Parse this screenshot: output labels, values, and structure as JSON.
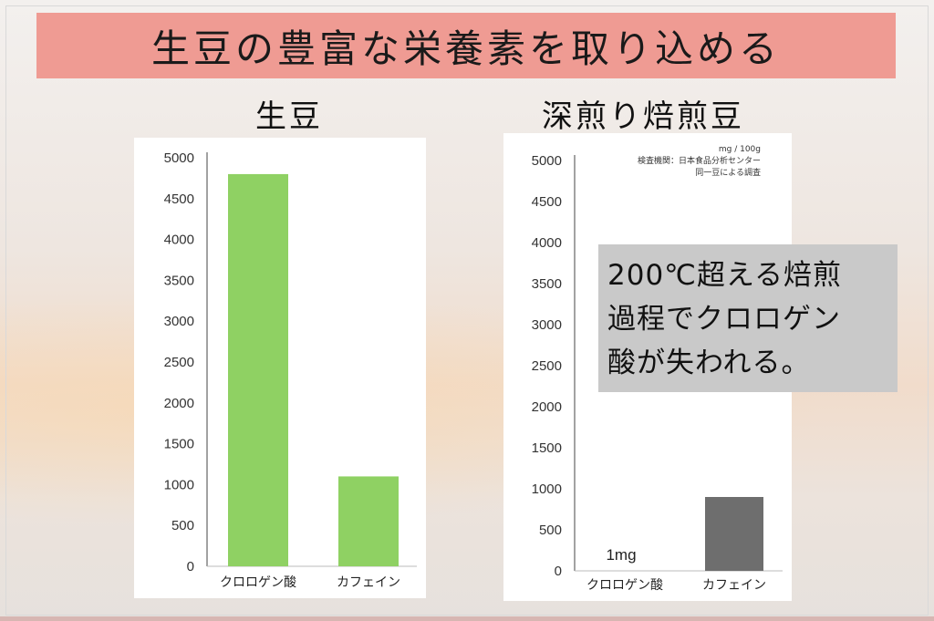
{
  "title": "生豆の豊富な栄養素を取り込める",
  "callout": {
    "lines": [
      "200℃超える焙煎",
      "過程でクロロゲン",
      "酸が失われる。"
    ]
  },
  "colors": {
    "title_bg": "#ef9b93",
    "green_bar": "#8fd163",
    "gray_bar": "#6e6e6e",
    "callout_bg": "#c9c9c9"
  },
  "chart_data": [
    {
      "type": "bar",
      "title": "生豆",
      "categories": [
        "クロロゲン酸",
        "カフェイン"
      ],
      "values": [
        4800,
        1100
      ],
      "ylim": [
        0,
        5000
      ],
      "yticks": [
        "0",
        "500",
        "1000",
        "1500",
        "2000",
        "2500",
        "3000",
        "3500",
        "4000",
        "4500",
        "5000"
      ],
      "grid": false,
      "legend": "none"
    },
    {
      "type": "bar",
      "title": "深煎り焙煎豆",
      "categories": [
        "クロロゲン酸",
        "カフェイン"
      ],
      "values": [
        1,
        900
      ],
      "ylim": [
        0,
        5000
      ],
      "yticks": [
        "0",
        "500",
        "1000",
        "1500",
        "2000",
        "2500",
        "3000",
        "3500",
        "4000",
        "4500",
        "5000"
      ],
      "data_labels": [
        "1mg",
        ""
      ],
      "annotations": [
        "mg / 100g",
        "検査機関：日本食品分析センター",
        "同一豆による調査"
      ],
      "grid": false,
      "legend": "none"
    }
  ]
}
